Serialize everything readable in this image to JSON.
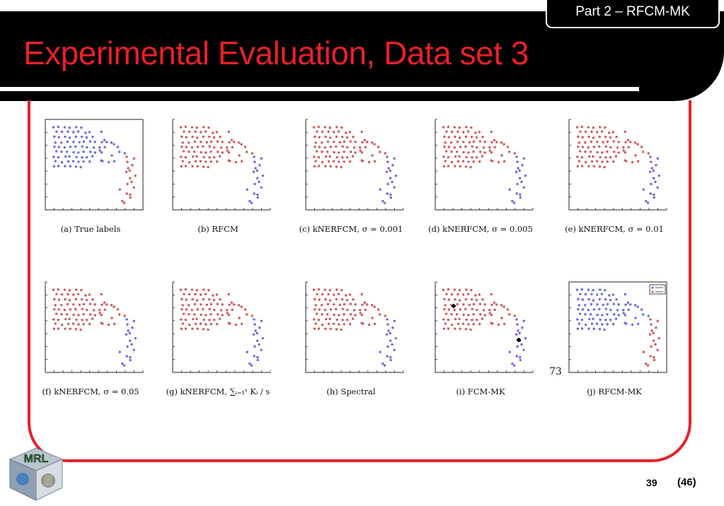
{
  "header": {
    "title": "Experimental Evaluation, Data set 3",
    "section_tab": "Part 2 – RFCM-MK"
  },
  "colors": {
    "title": "#e8202a",
    "frame": "#e8202a",
    "blue_points": "#6b6bd6",
    "red_points": "#cc5b5b"
  },
  "figure": {
    "page_mark": "73",
    "panels": [
      {
        "caption": "(a) True labels",
        "left_cluster_color": "blue",
        "right_cluster_color": "red",
        "legend": false
      },
      {
        "caption": "(b) RFCM",
        "left_cluster_color": "red",
        "right_cluster_color": "blue",
        "legend": false
      },
      {
        "caption": "(c) kNERFCM, σ = 0.001",
        "left_cluster_color": "red",
        "right_cluster_color": "blue",
        "legend": false
      },
      {
        "caption": "(d) kNERFCM, σ = 0.005",
        "left_cluster_color": "red",
        "right_cluster_color": "blue",
        "legend": false
      },
      {
        "caption": "(e) kNERFCM, σ = 0.01",
        "left_cluster_color": "red",
        "right_cluster_color": "blue",
        "legend": false
      },
      {
        "caption": "(f) kNERFCM, σ = 0.05",
        "left_cluster_color": "red",
        "right_cluster_color": "blue",
        "legend": false
      },
      {
        "caption": "(g) kNERFCM, ∑ᵢ₌₁ˢ Kᵢ / s",
        "left_cluster_color": "red",
        "right_cluster_color": "blue",
        "legend": false
      },
      {
        "caption": "(h) Spectral",
        "left_cluster_color": "red",
        "right_cluster_color": "blue",
        "legend": false
      },
      {
        "caption": "(i) FCM-MK",
        "left_cluster_color": "red",
        "right_cluster_color": "blue",
        "legend": false,
        "markers": true
      },
      {
        "caption": "(j) RFCM-MK",
        "left_cluster_color": "blue",
        "right_cluster_color": "red",
        "legend": true
      }
    ]
  },
  "footer": {
    "slide_number": "39",
    "slide_total": "(46)",
    "logo_text": "MRL"
  }
}
